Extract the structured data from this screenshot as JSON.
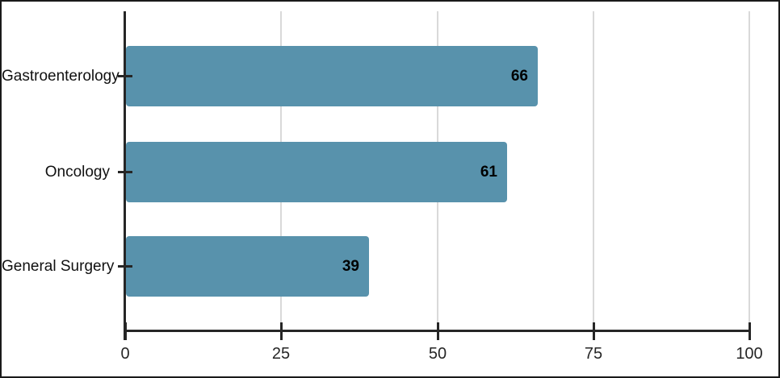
{
  "frame": {
    "background_color": "#ffffff",
    "border_color": "#1a1a1a"
  },
  "chart_data": {
    "type": "bar",
    "orientation": "horizontal",
    "categories": [
      "Gastroenterology",
      "Oncology",
      "General Surgery"
    ],
    "values": [
      66,
      61,
      39
    ],
    "value_labels": [
      "66",
      "61",
      "39"
    ],
    "xlim": [
      0,
      100
    ],
    "x_ticks": [
      0,
      25,
      50,
      75,
      100
    ],
    "x_tick_labels": [
      "0",
      "25",
      "50",
      "75",
      "100"
    ],
    "grid": {
      "vertical": true,
      "color": "#d9d9d9"
    },
    "bar_color": "#5892ac",
    "axis_color": "#262626",
    "value_label_color": "#000000",
    "category_label_color": "#111111",
    "title": "",
    "xlabel": "",
    "ylabel": ""
  }
}
